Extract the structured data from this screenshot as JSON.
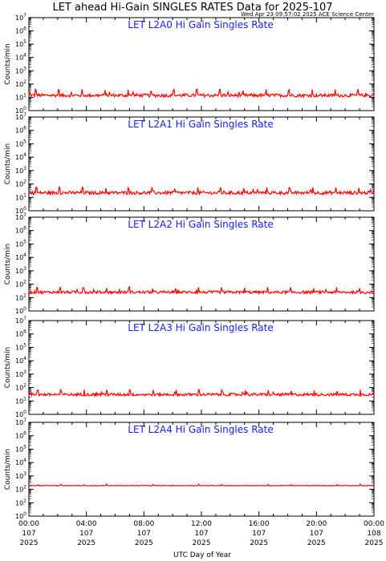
{
  "header": {
    "title": "LET ahead Hi-Gain SINGLES RATES Data for 2025-107",
    "timestamp": "Wed Apr 23 09:57:02 2025 ACE Science Center"
  },
  "chart_data": {
    "type": "line",
    "xlabel": "UTC Day of Year",
    "ylabel": "Counts/min",
    "y_scale": "log",
    "ylim": [
      1,
      10000000
    ],
    "y_tick_base": "10",
    "y_tick_exponents": [
      "0",
      "1",
      "2",
      "3",
      "4",
      "5",
      "6",
      "7"
    ],
    "x_unit": "hours",
    "x_range": [
      0,
      24
    ],
    "x_ticks": [
      {
        "time": "00:00",
        "doy": "107",
        "year": "2025"
      },
      {
        "time": "04:00",
        "doy": "107",
        "year": "2025"
      },
      {
        "time": "08:00",
        "doy": "107",
        "year": "2025"
      },
      {
        "time": "12:00",
        "doy": "107",
        "year": "2025"
      },
      {
        "time": "16:00",
        "doy": "107",
        "year": "2025"
      },
      {
        "time": "20:00",
        "doy": "107",
        "year": "2025"
      },
      {
        "time": "00:00",
        "doy": "108",
        "year": "2025"
      }
    ],
    "series_color": "#ff0000",
    "panels": [
      {
        "title": "LET L2A0 Hi Gain Singles Rate",
        "baseline": 14,
        "noise": 0.12,
        "spike_factor": 2.6,
        "spike_period_hours": 1.6,
        "spike_offset_hours": 0.45
      },
      {
        "title": "LET L2A1 Hi Gain Singles Rate",
        "baseline": 22,
        "noise": 0.12,
        "spike_factor": 2.4,
        "spike_period_hours": 1.6,
        "spike_offset_hours": 0.5
      },
      {
        "title": "LET L2A2 Hi Gain Singles Rate",
        "baseline": 25,
        "noise": 0.1,
        "spike_factor": 2.2,
        "spike_period_hours": 1.6,
        "spike_offset_hours": 0.55
      },
      {
        "title": "LET L2A3 Hi Gain Singles Rate",
        "baseline": 30,
        "noise": 0.1,
        "spike_factor": 2.0,
        "spike_period_hours": 1.6,
        "spike_offset_hours": 0.6
      },
      {
        "title": "LET L2A4 Hi Gain Singles Rate",
        "baseline": 190,
        "noise": 0.02,
        "spike_factor": 1.15,
        "spike_period_hours": 1.6,
        "spike_offset_hours": 0.6
      }
    ]
  }
}
